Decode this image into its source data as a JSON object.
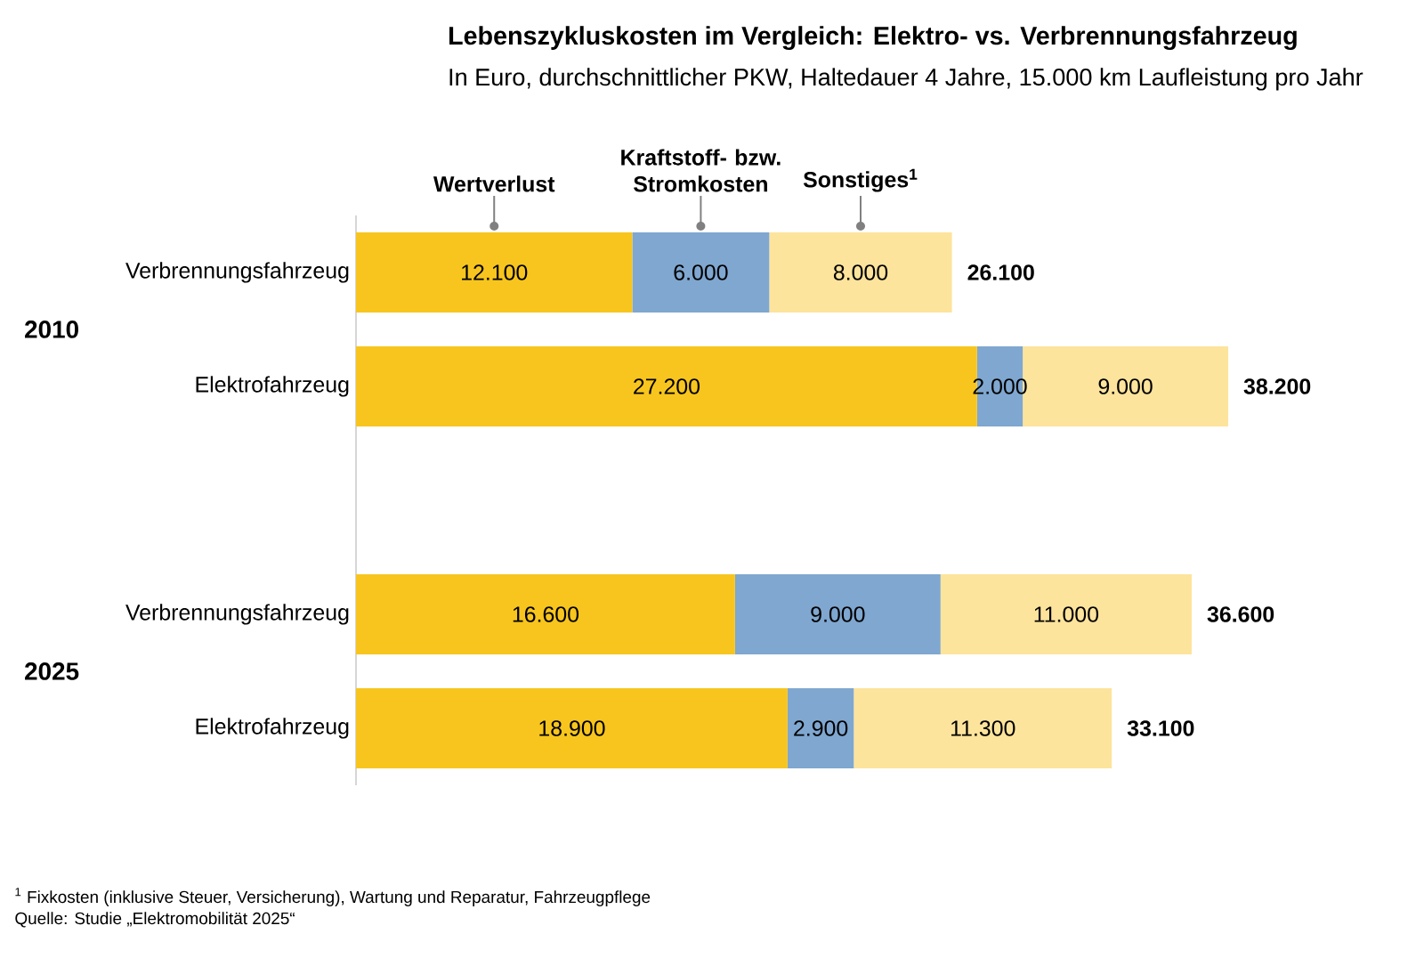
{
  "chart_data": {
    "type": "bar",
    "orientation": "horizontal",
    "stacked": true,
    "tick_labels": "y",
    "title": "Lebenszykluskosten im Vergleich: Elektro- vs. Verbrennungsfahrzeug",
    "subtitle": "In Euro, durchschnittlicher PKW, Haltedauer 4 Jahre, 15.000 km Laufleistung pro Jahr",
    "categories": [
      "Verbrennungsfahrzeug",
      "Elektrofahrzeug",
      null,
      "Verbrennungsfahrzeug",
      "Elektrofahrzeug"
    ],
    "series": [
      {
        "name": "Wertverlust",
        "color": "#f7c51e",
        "values": [
          12100,
          27200,
          null,
          16600,
          18900
        ],
        "value_labels": [
          "12.100",
          "27.200",
          null,
          "16.600",
          "18.900"
        ]
      },
      {
        "name": "Kraftstoff- bzw. Stromkosten",
        "color": "#7fa7d0",
        "values": [
          6000,
          2000,
          null,
          9000,
          2900
        ],
        "value_labels": [
          "6.000",
          "2.000",
          null,
          "9.000",
          "2.900"
        ]
      },
      {
        "name": "Sonstiges$^{1}$",
        "color": "#fde49c",
        "values": [
          8000,
          9000,
          null,
          11000,
          11300
        ],
        "value_labels": [
          "8.000",
          "9.000",
          null,
          "11.000",
          "11.300"
        ]
      }
    ],
    "totals": [
      "26.100",
      "38.200",
      null,
      "36.600",
      "33.100"
    ],
    "annotations": [
      "2010",
      "2025",
      "$^{1}$ Fixkosten (inklusive Steuer, Versicherung), Wartung und Reparatur, Fahrzeugpflege",
      "Quelle: Studie „Elektromobilität 2025“"
    ]
  }
}
